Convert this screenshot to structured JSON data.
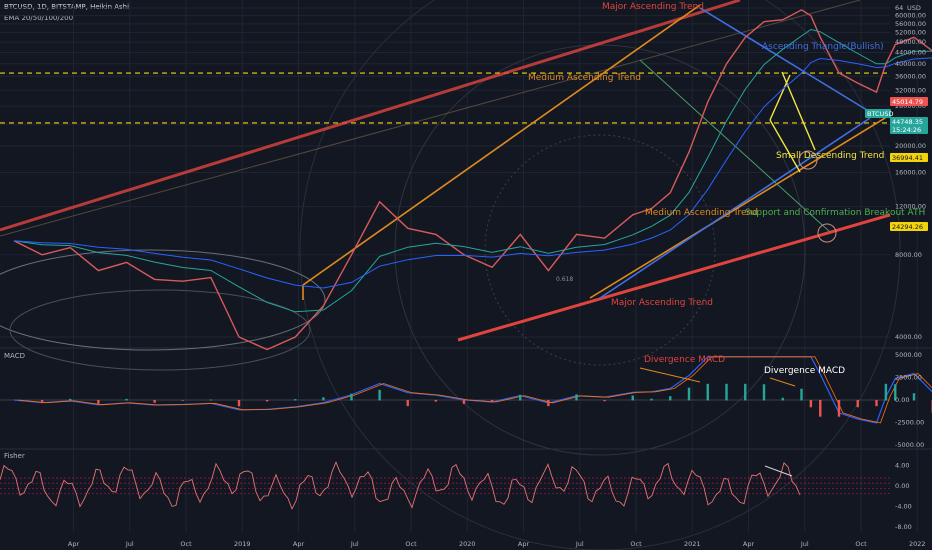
{
  "header": {
    "symbol_line": "BTCUSD, 1D, BITSTAMP, Heikin Ashi",
    "ema_line": "EMA 20/50/100/200"
  },
  "panes": {
    "macd_label": "MACD",
    "fisher_label": "Fisher"
  },
  "colors": {
    "background": "#131722",
    "grid": "#1f2430",
    "major_trend": "#e0443e",
    "medium_trend": "#e08a1e",
    "triangle": "#3f6fe0",
    "small_trend": "#f2e640",
    "support_label": "#4caf50",
    "dashed_level": "#f2d40d",
    "price_badge_red": "#ef5350",
    "price_badge_teal": "#26a69a"
  },
  "chart_data": {
    "type": "line",
    "scale": "log",
    "price_axis_label": "USD",
    "price_ticks": [
      64000,
      60000,
      56000,
      52000,
      48000,
      44000,
      40000,
      36000,
      32000,
      28000,
      24000,
      20000,
      16000,
      12000,
      8000,
      4000
    ],
    "x_ticks": [
      "Apr",
      "Jul",
      "Oct",
      "2019",
      "Apr",
      "Jul",
      "Oct",
      "2020",
      "Apr",
      "Jul",
      "Oct",
      "2021",
      "Apr",
      "Jul",
      "Oct",
      "2022"
    ],
    "price_labels": [
      {
        "value": "45014.79",
        "style": "red"
      },
      {
        "value": "BTCUSD",
        "style": "teal"
      },
      {
        "value": "44748.35",
        "style": "teal"
      },
      {
        "value": "15:24:26",
        "style": "teal"
      },
      {
        "value": "36994.41",
        "style": "yellow"
      },
      {
        "value": "24294.26",
        "style": "yellow"
      }
    ],
    "levels": [
      36994.41,
      24294.26
    ],
    "annotations": [
      {
        "text": "Major Ascending Trend",
        "color": "major"
      },
      {
        "text": "Ascending Triangle(Bullish)",
        "color": "triangle"
      },
      {
        "text": "Medium Ascending Trend",
        "color": "medium"
      },
      {
        "text": "Small Descending Trend",
        "color": "small"
      },
      {
        "text": "Medium Ascending Trend",
        "color": "medium"
      },
      {
        "text": "Support and Confirmation Breakout ATH",
        "color": "support"
      },
      {
        "text": "Major Ascending Trend",
        "color": "major"
      },
      {
        "text": "0.618",
        "color": "fib"
      }
    ],
    "series": [
      {
        "months": [
          0,
          1.5,
          3,
          4.5,
          6,
          7.5,
          9,
          10.5,
          12,
          13.5,
          15,
          16.5,
          18,
          19.5,
          21,
          22.5,
          24,
          25.5,
          27,
          28.5,
          30,
          31.5,
          33,
          34,
          35,
          36,
          37,
          38,
          39,
          40,
          41,
          42,
          42.5,
          43,
          44,
          45,
          46,
          46.5,
          47,
          48,
          49
        ],
        "prices": [
          9000,
          8000,
          8500,
          7000,
          7500,
          6500,
          6400,
          6600,
          4000,
          3600,
          4000,
          5200,
          8000,
          12500,
          10000,
          9500,
          8000,
          7200,
          9500,
          7000,
          9500,
          9200,
          11200,
          11800,
          13500,
          19000,
          29000,
          40000,
          50000,
          57000,
          58000,
          63000,
          60000,
          50000,
          37000,
          34000,
          31500,
          40000,
          47000,
          50000,
          44500
        ]
      }
    ],
    "macd": {
      "ticks": [
        5000,
        2500,
        0,
        -2500,
        -5000
      ],
      "tick_labels": [
        "5000.00",
        "2500.00",
        "0.00",
        "-2500.00",
        "-5000.00"
      ],
      "annotations": [
        "Divergence MACD",
        "Divergence MACD"
      ]
    },
    "fisher": {
      "ticks": [
        4,
        0,
        -4,
        -8
      ],
      "tick_labels": [
        "4.00",
        "0.00",
        "-4.00",
        "-8.00"
      ]
    }
  }
}
